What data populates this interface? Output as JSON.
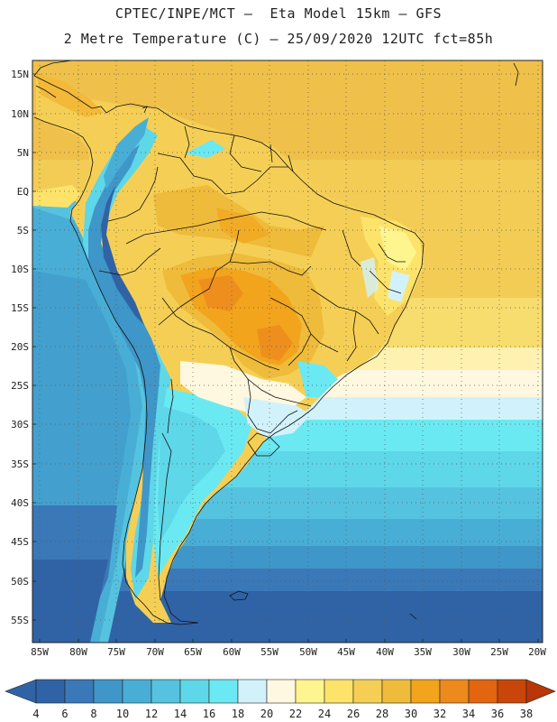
{
  "header": {
    "line1": "CPTEC/INPE/MCT –  Eta Model 15km – GFS",
    "line2": "2 Metre Temperature (C) – 25/09/2020 12UTC fct=85h"
  },
  "axes": {
    "lat_labels": [
      "15N",
      "10N",
      "5N",
      "EQ",
      "5S",
      "10S",
      "15S",
      "20S",
      "25S",
      "30S",
      "35S",
      "40S",
      "45S",
      "50S",
      "55S"
    ],
    "lon_labels": [
      "85W",
      "80W",
      "75W",
      "70W",
      "65W",
      "60W",
      "55W",
      "50W",
      "45W",
      "40W",
      "35W",
      "30W",
      "25W",
      "20W"
    ]
  },
  "colorbar": {
    "labels": [
      "4",
      "6",
      "8",
      "10",
      "12",
      "14",
      "16",
      "18",
      "20",
      "22",
      "24",
      "26",
      "28",
      "30",
      "32",
      "34",
      "36",
      "38"
    ],
    "colors": [
      "#2f63a6",
      "#3a78b8",
      "#3f96c8",
      "#49aed6",
      "#55c3df",
      "#5ed7e8",
      "#6be9f2",
      "#d2f2fb",
      "#fff8e0",
      "#fff58f",
      "#fde36a",
      "#f5cf55",
      "#efbb3a",
      "#f2a41c",
      "#ec8a1e",
      "#e2650f",
      "#c8460a"
    ],
    "left_arrow_color": "#2f63a6",
    "right_arrow_color": "#b83608"
  }
}
